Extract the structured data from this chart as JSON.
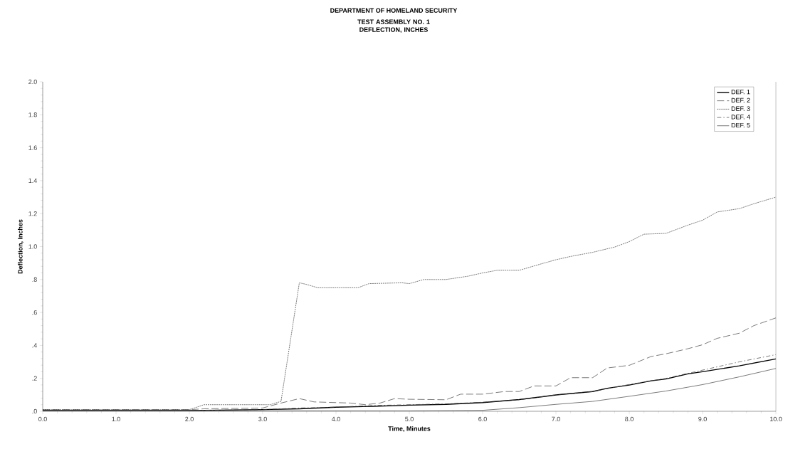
{
  "chart_data": {
    "type": "line",
    "title": "DEPARTMENT OF HOMELAND SECURITY",
    "subtitle": "TEST ASSEMBLY NO. 1 DEFLECTION, INCHES",
    "xlabel": "Time, Minutes",
    "ylabel": "Deflection, Inches",
    "xlim": [
      0,
      10
    ],
    "ylim": [
      0,
      2
    ],
    "xticks": [
      {
        "value": 0,
        "label": "0.0"
      },
      {
        "value": 1,
        "label": "1.0"
      },
      {
        "value": 2,
        "label": "2.0"
      },
      {
        "value": 3,
        "label": "3.0"
      },
      {
        "value": 4,
        "label": "4.0"
      },
      {
        "value": 5,
        "label": "5.0"
      },
      {
        "value": 6,
        "label": "6.0"
      },
      {
        "value": 7,
        "label": "7.0"
      },
      {
        "value": 8,
        "label": "8.0"
      },
      {
        "value": 9,
        "label": "9.0"
      },
      {
        "value": 10,
        "label": "10.0"
      }
    ],
    "yticks": [
      {
        "value": 0,
        "label": ".0"
      },
      {
        "value": 0.2,
        "label": ".2"
      },
      {
        "value": 0.4,
        "label": ".4"
      },
      {
        "value": 0.6,
        "label": ".6"
      },
      {
        "value": 0.8,
        "label": ".8"
      },
      {
        "value": 1.0,
        "label": "1.0"
      },
      {
        "value": 1.2,
        "label": "1.2"
      },
      {
        "value": 1.4,
        "label": "1.4"
      },
      {
        "value": 1.6,
        "label": "1.6"
      },
      {
        "value": 1.8,
        "label": "1.8"
      },
      {
        "value": 2.0,
        "label": "2.0"
      }
    ],
    "grid": false,
    "legend": "top right",
    "marker": "none",
    "series": [
      {
        "name": "DEF. 1",
        "color": "#000000",
        "line_style": "solid",
        "x": [
          0,
          1,
          2,
          3,
          3.5,
          4,
          4.5,
          5,
          5.5,
          6,
          6.5,
          7,
          7.5,
          7.7,
          8,
          8.3,
          8.5,
          8.8,
          9,
          9.5,
          10
        ],
        "values": [
          0.005,
          0.005,
          0.005,
          0.01,
          0.015,
          0.025,
          0.03,
          0.037,
          0.042,
          0.053,
          0.071,
          0.099,
          0.12,
          0.14,
          0.159,
          0.185,
          0.196,
          0.227,
          0.24,
          0.276,
          0.318
        ]
      },
      {
        "name": "DEF. 2",
        "color": "#404040",
        "line_style": "dashed",
        "x": [
          0,
          1,
          2,
          2.2,
          3,
          3.25,
          3.5,
          3.7,
          4.2,
          4.4,
          4.6,
          4.8,
          5,
          5.5,
          5.7,
          6,
          6.3,
          6.5,
          6.7,
          7,
          7.2,
          7.5,
          7.7,
          8,
          8.3,
          8.5,
          8.8,
          9,
          9.2,
          9.5,
          9.7,
          10
        ],
        "values": [
          0.01,
          0.01,
          0.01,
          0.015,
          0.02,
          0.05,
          0.077,
          0.057,
          0.05,
          0.04,
          0.05,
          0.077,
          0.073,
          0.07,
          0.104,
          0.104,
          0.12,
          0.12,
          0.154,
          0.154,
          0.204,
          0.204,
          0.263,
          0.279,
          0.333,
          0.349,
          0.38,
          0.404,
          0.443,
          0.474,
          0.52,
          0.567
        ]
      },
      {
        "name": "DEF. 3",
        "color": "#404040",
        "line_style": "dotted",
        "x": [
          0,
          1,
          2,
          2.2,
          3.1,
          3.25,
          3.5,
          3.6,
          3.75,
          4.3,
          4.45,
          4.9,
          5,
          5.2,
          5.5,
          5.8,
          6,
          6.2,
          6.5,
          6.8,
          7,
          7.2,
          7.5,
          7.8,
          8,
          8.2,
          8.5,
          8.8,
          9,
          9.2,
          9.5,
          9.7,
          10
        ],
        "values": [
          0.01,
          0.01,
          0.01,
          0.04,
          0.04,
          0.06,
          0.78,
          0.77,
          0.75,
          0.75,
          0.775,
          0.78,
          0.775,
          0.8,
          0.8,
          0.82,
          0.84,
          0.856,
          0.856,
          0.895,
          0.92,
          0.94,
          0.965,
          0.997,
          1.03,
          1.075,
          1.08,
          1.13,
          1.16,
          1.21,
          1.23,
          1.26,
          1.3
        ]
      },
      {
        "name": "DEF. 4",
        "color": "#404040",
        "line_style": "dashdot",
        "x": [
          0,
          1,
          2,
          3,
          3.5,
          4,
          4.5,
          5,
          5.5,
          6,
          6.5,
          7,
          7.5,
          8,
          8.5,
          9,
          9.5,
          10
        ],
        "values": [
          0.005,
          0.005,
          0.005,
          0.01,
          0.02,
          0.025,
          0.035,
          0.04,
          0.045,
          0.055,
          0.07,
          0.1,
          0.12,
          0.163,
          0.2,
          0.25,
          0.3,
          0.344
        ]
      },
      {
        "name": "DEF. 5",
        "color": "#404040",
        "line_style": "solid",
        "x": [
          0,
          1,
          2,
          3,
          4,
          5,
          6,
          6.5,
          7,
          7.5,
          8,
          8.5,
          9,
          9.5,
          10
        ],
        "values": [
          0.003,
          0.003,
          0.003,
          0.003,
          0.003,
          0.003,
          0.006,
          0.022,
          0.042,
          0.06,
          0.091,
          0.123,
          0.162,
          0.209,
          0.26
        ]
      }
    ]
  }
}
